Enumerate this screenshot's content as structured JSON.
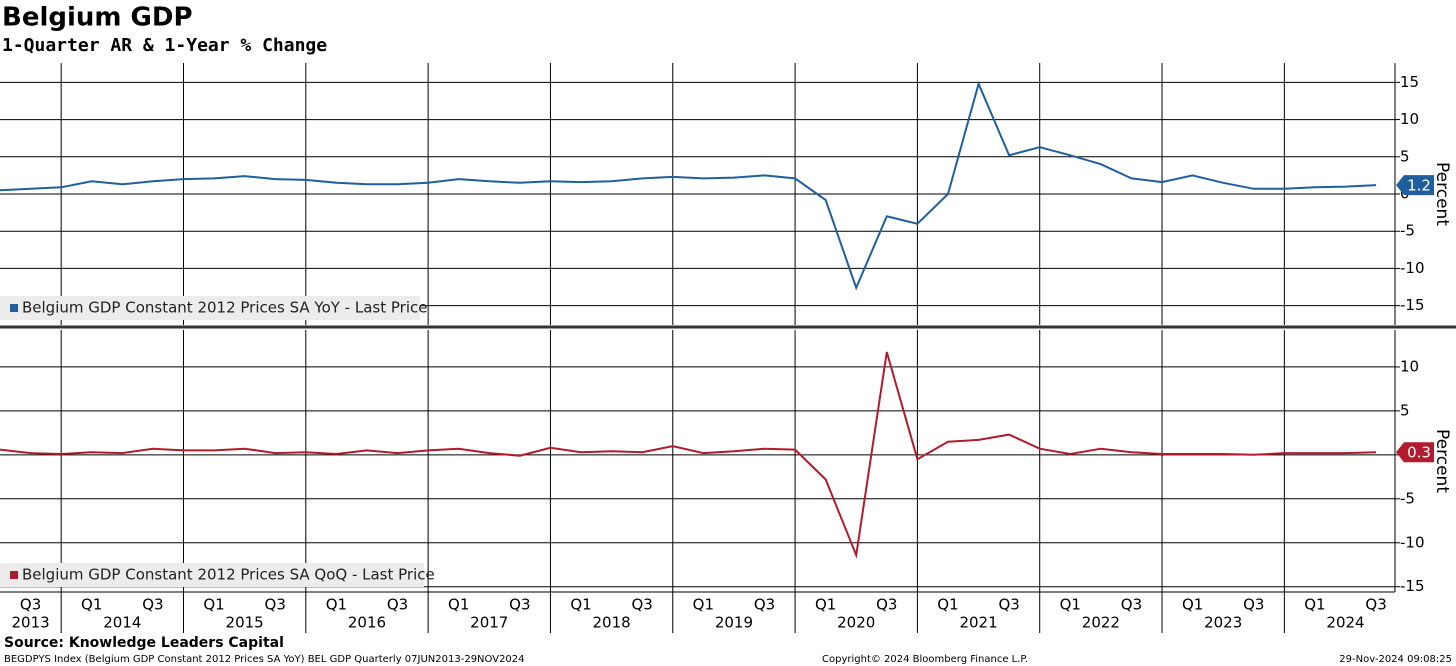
{
  "title": "Belgium GDP",
  "subtitle": "1-Quarter AR & 1-Year % Change",
  "x_axis": {
    "ticks": [
      {
        "value": "2013 Q3",
        "label": "Q3"
      },
      {
        "value": "2014 Q1",
        "label": "Q1"
      },
      {
        "value": "2014 Q3",
        "label": "Q3"
      },
      {
        "value": "2015 Q1",
        "label": "Q1"
      },
      {
        "value": "2015 Q3",
        "label": "Q3"
      },
      {
        "value": "2016 Q1",
        "label": "Q1"
      },
      {
        "value": "2016 Q3",
        "label": "Q3"
      },
      {
        "value": "2017 Q1",
        "label": "Q1"
      },
      {
        "value": "2017 Q3",
        "label": "Q3"
      },
      {
        "value": "2018 Q1",
        "label": "Q1"
      },
      {
        "value": "2018 Q3",
        "label": "Q3"
      },
      {
        "value": "2019 Q1",
        "label": "Q1"
      },
      {
        "value": "2019 Q3",
        "label": "Q3"
      },
      {
        "value": "2020 Q1",
        "label": "Q1"
      },
      {
        "value": "2020 Q3",
        "label": "Q3"
      },
      {
        "value": "2021 Q1",
        "label": "Q1"
      },
      {
        "value": "2021 Q3",
        "label": "Q3"
      },
      {
        "value": "2022 Q1",
        "label": "Q1"
      },
      {
        "value": "2022 Q3",
        "label": "Q3"
      },
      {
        "value": "2023 Q1",
        "label": "Q1"
      },
      {
        "value": "2023 Q3",
        "label": "Q3"
      },
      {
        "value": "2024 Q1",
        "label": "Q1"
      },
      {
        "value": "2024 Q3",
        "label": "Q3"
      }
    ],
    "years": [
      "2013",
      "2014",
      "2015",
      "2016",
      "2017",
      "2018",
      "2019",
      "2020",
      "2021",
      "2022",
      "2023",
      "2024"
    ]
  },
  "chart_data": [
    {
      "type": "line",
      "x": [
        "2013 Q2",
        "2013 Q3",
        "2013 Q4",
        "2014 Q1",
        "2014 Q2",
        "2014 Q3",
        "2014 Q4",
        "2015 Q1",
        "2015 Q2",
        "2015 Q3",
        "2015 Q4",
        "2016 Q1",
        "2016 Q2",
        "2016 Q3",
        "2016 Q4",
        "2017 Q1",
        "2017 Q2",
        "2017 Q3",
        "2017 Q4",
        "2018 Q1",
        "2018 Q2",
        "2018 Q3",
        "2018 Q4",
        "2019 Q1",
        "2019 Q2",
        "2019 Q3",
        "2019 Q4",
        "2020 Q1",
        "2020 Q2",
        "2020 Q3",
        "2020 Q4",
        "2021 Q1",
        "2021 Q2",
        "2021 Q3",
        "2021 Q4",
        "2022 Q1",
        "2022 Q2",
        "2022 Q3",
        "2022 Q4",
        "2023 Q1",
        "2023 Q2",
        "2023 Q3",
        "2023 Q4",
        "2024 Q1",
        "2024 Q2",
        "2024 Q3"
      ],
      "series": [
        {
          "name": "Belgium GDP Constant 2012 Prices SA YoY - Last Price",
          "color": "#1f5f9e",
          "values": [
            0.5,
            0.7,
            0.9,
            1.7,
            1.3,
            1.7,
            2.0,
            2.1,
            2.4,
            2.0,
            1.9,
            1.5,
            1.3,
            1.3,
            1.5,
            2.0,
            1.7,
            1.5,
            1.7,
            1.6,
            1.7,
            2.1,
            2.3,
            2.1,
            2.2,
            2.5,
            2.1,
            -0.8,
            -12.6,
            -3.0,
            -4.0,
            0.0,
            14.8,
            5.2,
            6.3,
            5.2,
            4.0,
            2.1,
            1.6,
            2.5,
            1.5,
            0.7,
            0.7,
            0.9,
            1.0,
            1.2
          ]
        }
      ],
      "ylim": [
        -17.6,
        17.6
      ],
      "yticks": [
        -15,
        -10,
        -5,
        0,
        5,
        10,
        15
      ],
      "y_label": "Percent",
      "grid": true
    },
    {
      "type": "line",
      "x": [
        "2013 Q2",
        "2013 Q3",
        "2013 Q4",
        "2014 Q1",
        "2014 Q2",
        "2014 Q3",
        "2014 Q4",
        "2015 Q1",
        "2015 Q2",
        "2015 Q3",
        "2015 Q4",
        "2016 Q1",
        "2016 Q2",
        "2016 Q3",
        "2016 Q4",
        "2017 Q1",
        "2017 Q2",
        "2017 Q3",
        "2017 Q4",
        "2018 Q1",
        "2018 Q2",
        "2018 Q3",
        "2018 Q4",
        "2019 Q1",
        "2019 Q2",
        "2019 Q3",
        "2019 Q4",
        "2020 Q1",
        "2020 Q2",
        "2020 Q3",
        "2020 Q4",
        "2021 Q1",
        "2021 Q2",
        "2021 Q3",
        "2021 Q4",
        "2022 Q1",
        "2022 Q2",
        "2022 Q3",
        "2022 Q4",
        "2023 Q1",
        "2023 Q2",
        "2023 Q3",
        "2023 Q4",
        "2024 Q1",
        "2024 Q2",
        "2024 Q3"
      ],
      "series": [
        {
          "name": "Belgium GDP Constant 2012 Prices SA QoQ - Last Price",
          "color": "#b01c2e",
          "values": [
            0.6,
            0.2,
            0.1,
            0.3,
            0.2,
            0.7,
            0.5,
            0.5,
            0.7,
            0.2,
            0.3,
            0.1,
            0.5,
            0.2,
            0.5,
            0.7,
            0.2,
            -0.1,
            0.8,
            0.3,
            0.4,
            0.3,
            1.0,
            0.2,
            0.4,
            0.7,
            0.6,
            -2.8,
            -11.4,
            11.7,
            -0.5,
            1.5,
            1.7,
            2.3,
            0.7,
            0.1,
            0.7,
            0.3,
            0.1,
            0.1,
            0.1,
            0.0,
            0.2,
            0.2,
            0.2,
            0.3
          ]
        }
      ],
      "ylim": [
        -15.6,
        14.2
      ],
      "yticks": [
        -15,
        -10,
        -5,
        0,
        5,
        10
      ],
      "y_label": "Percent",
      "grid": true
    }
  ],
  "source": "Source: Knowledge Leaders Capital",
  "footnote": "BEGDPYS Index (Belgium GDP Constant 2012 Prices SA YoY) BEL GDP  Quarterly 07JUN2013-29NOV2024",
  "copyright": "Copyright© 2024 Bloomberg Finance L.P.",
  "timestamp": "29-Nov-2024 09:08:25"
}
